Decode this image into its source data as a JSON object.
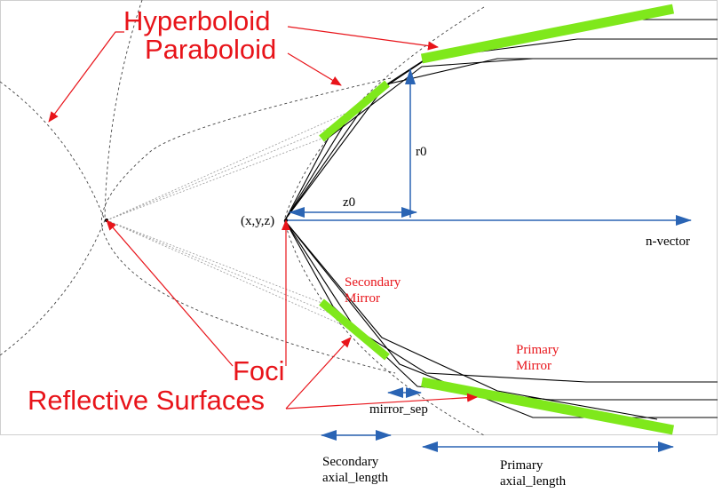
{
  "labels": {
    "hyperboloid": "Hyperboloid",
    "paraboloid": "Paraboloid",
    "foci": "Foci",
    "reflective_surfaces": "Reflective Surfaces",
    "secondary_mirror_line1": "Secondary",
    "secondary_mirror_line2": "Mirror",
    "primary_mirror_line1": "Primary",
    "primary_mirror_line2": "Mirror",
    "origin": "(x,y,z)",
    "z0": "z0",
    "r0": "r0",
    "n_vector": "n-vector",
    "mirror_sep": "mirror_sep",
    "secondary_axial_line1": "Secondary",
    "secondary_axial_line2": "axial_length",
    "primary_axial_line1": "Primary",
    "primary_axial_line2": "axial_length"
  },
  "colors": {
    "mirror": "#7fe81b",
    "annotation_red": "#e8141a",
    "dimension_blue": "#2a64b4",
    "ray_black": "#000000",
    "guide_gray": "#444444"
  }
}
